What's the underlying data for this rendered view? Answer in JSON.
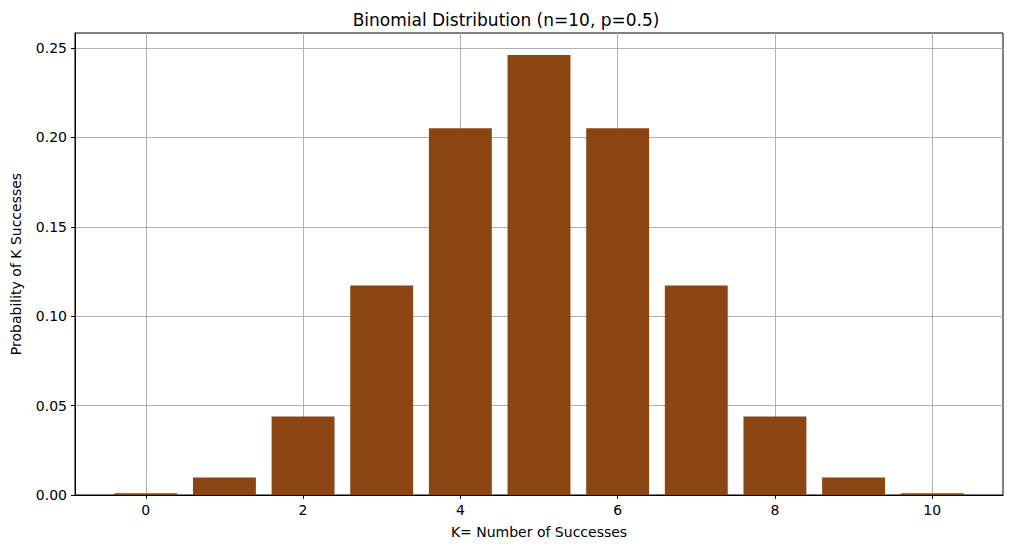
{
  "chart_data": {
    "type": "bar",
    "title": "Binomial Distribution (n=10, p=0.5)",
    "x_label": "K= Number of Successes",
    "y_label": "Probability of K Successes",
    "x": [
      0,
      1,
      2,
      3,
      4,
      5,
      6,
      7,
      8,
      9,
      10
    ],
    "values": [
      0.001,
      0.0098,
      0.0439,
      0.1172,
      0.2051,
      0.2461,
      0.2051,
      0.1172,
      0.0439,
      0.0098,
      0.001
    ],
    "color": "#8b4513",
    "xlim": [
      -0.9,
      10.9
    ],
    "xticks": [
      0,
      2,
      4,
      6,
      8,
      10
    ],
    "ylim": [
      0,
      0.2584
    ],
    "yticks": [
      {
        "value": 0,
        "label": "0.00"
      },
      {
        "value": 0.05,
        "label": "0.05"
      },
      {
        "value": 0.1,
        "label": "0.10"
      },
      {
        "value": 0.15,
        "label": "0.15"
      },
      {
        "value": 0.2,
        "label": "0.20"
      },
      {
        "value": 0.25,
        "label": "0.25"
      }
    ],
    "grid": true
  }
}
